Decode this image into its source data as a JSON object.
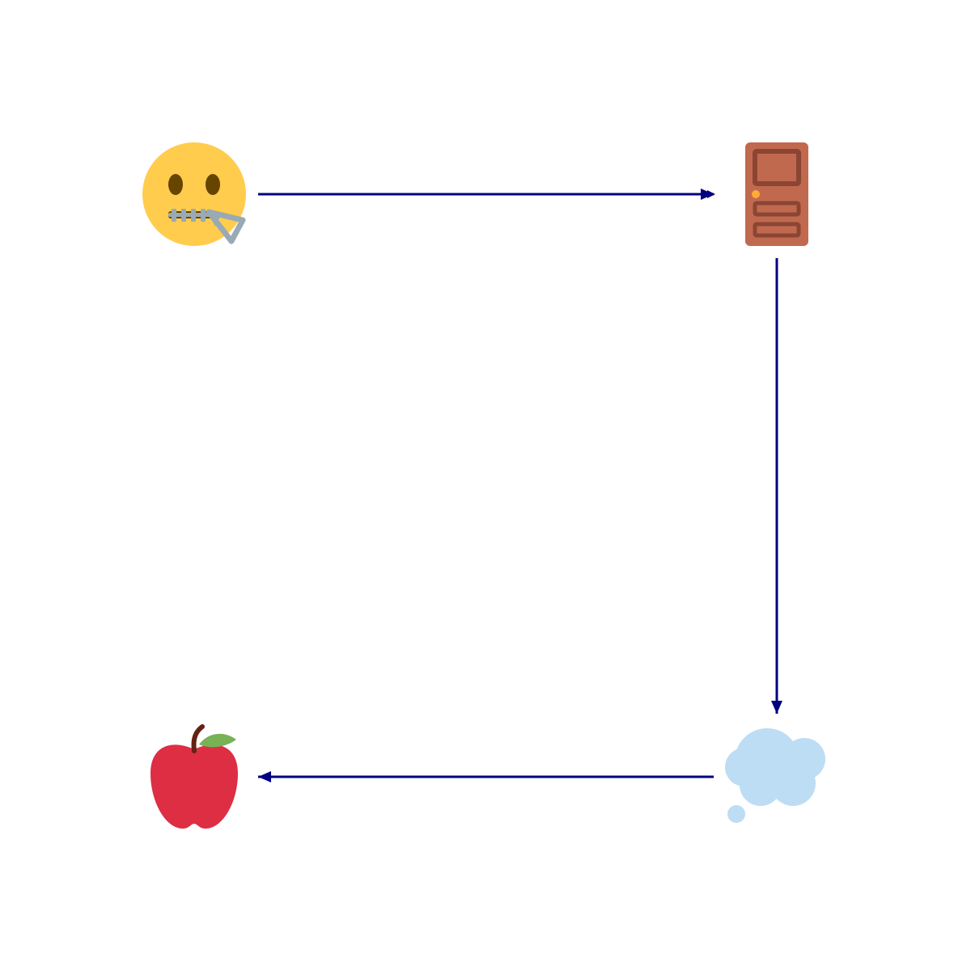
{
  "diagram": {
    "nodes": [
      {
        "id": "zipper-mouth-face",
        "icon": "zipper-mouth-face-icon"
      },
      {
        "id": "door",
        "icon": "door-icon"
      },
      {
        "id": "thought-balloon",
        "icon": "thought-balloon-icon"
      },
      {
        "id": "red-apple",
        "icon": "red-apple-icon"
      }
    ],
    "edges": [
      {
        "from": "zipper-mouth-face",
        "to": "door"
      },
      {
        "from": "door",
        "to": "thought-balloon"
      },
      {
        "from": "thought-balloon",
        "to": "red-apple"
      }
    ]
  },
  "colors": {
    "arrow": "#000080",
    "background": "#ffffff",
    "face": "#FFCC4D",
    "face_features": "#664500",
    "zipper": "#99AAB5",
    "door": "#C1694F",
    "door_dark": "#8A4633",
    "door_knob": "#FFAC33",
    "cloud": "#BDDDF4",
    "apple": "#DD2E44",
    "apple_leaf": "#77B255",
    "apple_stem": "#662113"
  }
}
